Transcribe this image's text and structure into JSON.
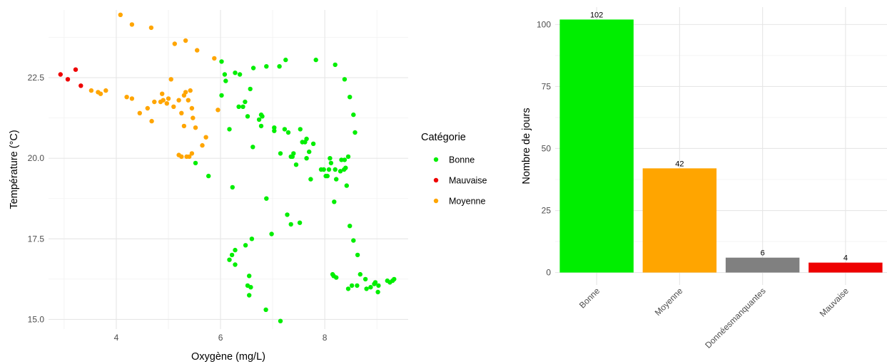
{
  "chart_data": [
    {
      "type": "scatter",
      "xlabel": "Oxygène (mg/L)",
      "ylabel": "Température (°C)",
      "xlim": [
        2.7,
        9.6
      ],
      "ylim": [
        14.7,
        24.6
      ],
      "x_ticks": [
        4,
        6,
        8
      ],
      "x_tick_labels": [
        "4",
        "6",
        "8"
      ],
      "y_ticks": [
        15.0,
        17.5,
        20.0,
        22.5
      ],
      "y_tick_labels": [
        "15.0",
        "17.5",
        "20.0",
        "22.5"
      ],
      "grid": true,
      "legend": {
        "title": "Catégorie",
        "placement": "right",
        "items": [
          {
            "label": "Bonne",
            "color": "#00ee00"
          },
          {
            "label": "Mauvaise",
            "color": "#ee0000"
          },
          {
            "label": "Moyenne",
            "color": "#ffa500"
          }
        ]
      },
      "series": [
        {
          "name": "Bonne",
          "color": "#00ee00",
          "points": [
            [
              6.02,
              23.0
            ],
            [
              6.08,
              22.6
            ],
            [
              6.1,
              22.4
            ],
            [
              6.28,
              22.65
            ],
            [
              6.37,
              22.6
            ],
            [
              6.63,
              22.8
            ],
            [
              6.88,
              22.85
            ],
            [
              7.13,
              22.85
            ],
            [
              7.25,
              23.05
            ],
            [
              7.83,
              23.05
            ],
            [
              8.2,
              22.9
            ],
            [
              8.38,
              22.45
            ],
            [
              6.02,
              21.95
            ],
            [
              6.35,
              21.6
            ],
            [
              6.43,
              21.6
            ],
            [
              6.47,
              21.75
            ],
            [
              6.52,
              21.3
            ],
            [
              6.57,
              22.15
            ],
            [
              6.74,
              21.2
            ],
            [
              6.78,
              21.35
            ],
            [
              6.8,
              21.3
            ],
            [
              6.78,
              21.0
            ],
            [
              6.17,
              20.9
            ],
            [
              6.62,
              20.35
            ],
            [
              7.03,
              20.95
            ],
            [
              7.03,
              20.85
            ],
            [
              7.23,
              20.9
            ],
            [
              7.3,
              20.8
            ],
            [
              7.53,
              20.9
            ],
            [
              7.15,
              20.15
            ],
            [
              7.38,
              20.05
            ],
            [
              7.4,
              20.15
            ],
            [
              7.35,
              20.05
            ],
            [
              7.45,
              19.8
            ],
            [
              7.57,
              20.5
            ],
            [
              7.62,
              20.5
            ],
            [
              7.65,
              20.6
            ],
            [
              7.7,
              20.2
            ],
            [
              7.78,
              20.45
            ],
            [
              7.65,
              20.0
            ],
            [
              7.73,
              19.35
            ],
            [
              7.93,
              19.65
            ],
            [
              7.98,
              19.65
            ],
            [
              8.02,
              19.45
            ],
            [
              8.05,
              19.45
            ],
            [
              8.08,
              19.65
            ],
            [
              8.1,
              20.0
            ],
            [
              8.12,
              19.85
            ],
            [
              8.2,
              19.65
            ],
            [
              8.22,
              19.35
            ],
            [
              8.3,
              19.6
            ],
            [
              8.32,
              19.95
            ],
            [
              8.38,
              19.95
            ],
            [
              8.37,
              19.65
            ],
            [
              8.4,
              19.7
            ],
            [
              8.42,
              19.15
            ],
            [
              8.45,
              20.05
            ],
            [
              8.48,
              21.9
            ],
            [
              8.55,
              21.35
            ],
            [
              8.58,
              20.8
            ],
            [
              5.52,
              19.85
            ],
            [
              5.77,
              19.45
            ],
            [
              6.23,
              19.1
            ],
            [
              6.88,
              18.75
            ],
            [
              8.18,
              18.65
            ],
            [
              7.28,
              18.25
            ],
            [
              7.35,
              17.95
            ],
            [
              7.52,
              18.0
            ],
            [
              6.98,
              17.65
            ],
            [
              8.48,
              17.9
            ],
            [
              8.55,
              17.45
            ],
            [
              6.6,
              17.5
            ],
            [
              6.48,
              17.3
            ],
            [
              6.28,
              17.15
            ],
            [
              6.22,
              17.0
            ],
            [
              6.17,
              16.85
            ],
            [
              6.28,
              16.7
            ],
            [
              8.63,
              17.0
            ],
            [
              6.55,
              16.35
            ],
            [
              8.15,
              16.4
            ],
            [
              8.22,
              16.3
            ],
            [
              8.68,
              16.4
            ],
            [
              8.78,
              16.25
            ],
            [
              8.52,
              16.05
            ],
            [
              6.52,
              16.05
            ],
            [
              6.55,
              15.75
            ],
            [
              8.8,
              15.95
            ],
            [
              8.88,
              16.0
            ],
            [
              8.95,
              16.1
            ],
            [
              8.97,
              16.15
            ],
            [
              9.02,
              15.85
            ],
            [
              9.03,
              16.05
            ],
            [
              9.2,
              16.2
            ],
            [
              9.25,
              16.15
            ],
            [
              9.3,
              16.2
            ],
            [
              9.33,
              16.25
            ],
            [
              6.87,
              15.3
            ],
            [
              7.15,
              14.95
            ],
            [
              8.45,
              15.95
            ],
            [
              8.62,
              16.05
            ],
            [
              8.17,
              16.35
            ],
            [
              6.58,
              16.0
            ]
          ]
        },
        {
          "name": "Mauvaise",
          "color": "#ee0000",
          "points": [
            [
              2.93,
              22.6
            ],
            [
              3.07,
              22.45
            ],
            [
              3.22,
              22.75
            ],
            [
              3.32,
              22.25
            ]
          ]
        },
        {
          "name": "Moyenne",
          "color": "#ffa500",
          "points": [
            [
              4.08,
              24.45
            ],
            [
              4.3,
              24.15
            ],
            [
              4.67,
              24.05
            ],
            [
              5.12,
              23.55
            ],
            [
              5.33,
              23.65
            ],
            [
              5.55,
              23.35
            ],
            [
              5.88,
              23.1
            ],
            [
              3.52,
              22.1
            ],
            [
              3.65,
              22.05
            ],
            [
              3.7,
              22.0
            ],
            [
              3.8,
              22.1
            ],
            [
              4.2,
              21.9
            ],
            [
              4.3,
              21.85
            ],
            [
              4.45,
              21.4
            ],
            [
              4.6,
              21.55
            ],
            [
              4.68,
              21.15
            ],
            [
              4.73,
              21.75
            ],
            [
              4.85,
              21.75
            ],
            [
              4.88,
              22.0
            ],
            [
              4.9,
              21.8
            ],
            [
              4.97,
              21.7
            ],
            [
              5.0,
              21.85
            ],
            [
              5.05,
              22.45
            ],
            [
              5.1,
              21.6
            ],
            [
              5.2,
              21.8
            ],
            [
              5.25,
              21.4
            ],
            [
              5.3,
              21.95
            ],
            [
              5.33,
              22.05
            ],
            [
              5.38,
              21.8
            ],
            [
              5.42,
              22.1
            ],
            [
              5.45,
              21.55
            ],
            [
              5.3,
              21.0
            ],
            [
              5.47,
              21.25
            ],
            [
              5.52,
              20.95
            ],
            [
              5.65,
              20.4
            ],
            [
              5.72,
              20.65
            ],
            [
              5.2,
              20.1
            ],
            [
              5.25,
              20.05
            ],
            [
              5.35,
              20.05
            ],
            [
              5.4,
              20.05
            ],
            [
              5.45,
              20.15
            ],
            [
              5.95,
              21.5
            ]
          ]
        }
      ]
    },
    {
      "type": "bar",
      "ylabel": "Nombre de jours",
      "xlabel": "",
      "categories": [
        "Bonne",
        "Moyenne",
        "Données manquantes",
        "Mauvaise"
      ],
      "category_labels": [
        "Bonne",
        "Moyenne",
        "Donnéesmanquantes",
        "Mauvaise"
      ],
      "values": [
        102,
        42,
        6,
        4
      ],
      "data_labels": [
        "102",
        "42",
        "6",
        "4"
      ],
      "colors": [
        "#00ee00",
        "#ffa500",
        "#808080",
        "#ee0000"
      ],
      "ylim": [
        -5,
        107
      ],
      "y_ticks": [
        0,
        25,
        50,
        75,
        100
      ],
      "y_tick_labels": [
        "0",
        "25",
        "50",
        "75",
        "100"
      ],
      "grid": true
    }
  ]
}
